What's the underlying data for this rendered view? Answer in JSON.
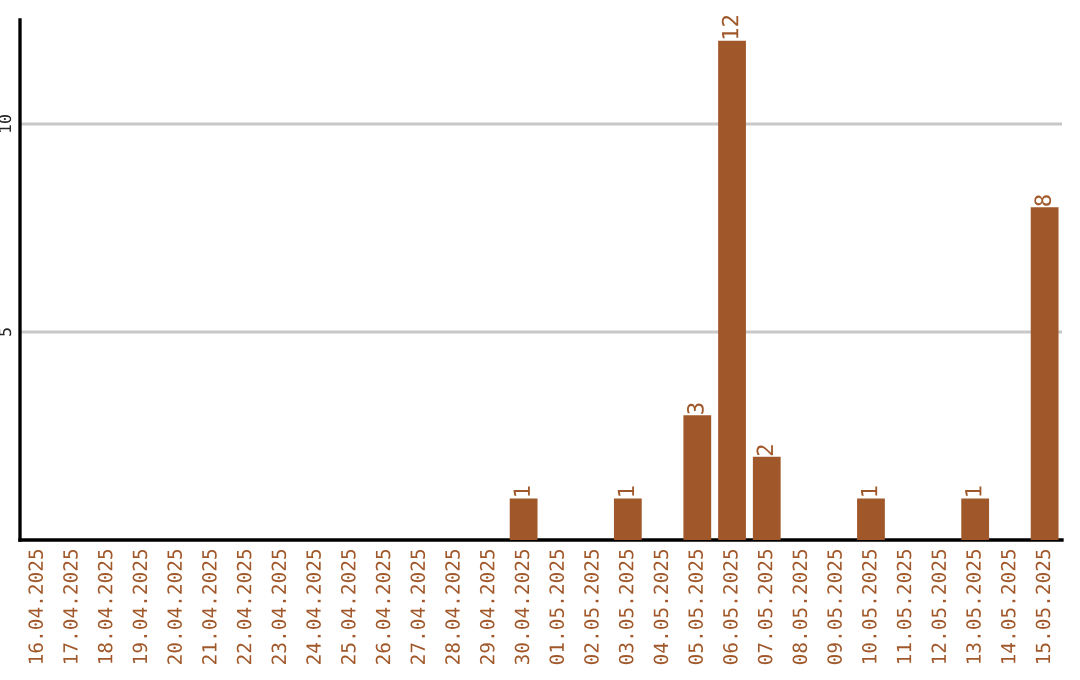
{
  "chart_data": {
    "type": "bar",
    "categories": [
      "16.04.2025",
      "17.04.2025",
      "18.04.2025",
      "19.04.2025",
      "20.04.2025",
      "21.04.2025",
      "22.04.2025",
      "23.04.2025",
      "24.04.2025",
      "25.04.2025",
      "26.04.2025",
      "27.04.2025",
      "28.04.2025",
      "29.04.2025",
      "30.04.2025",
      "01.05.2025",
      "02.05.2025",
      "03.05.2025",
      "04.05.2025",
      "05.05.2025",
      "06.05.2025",
      "07.05.2025",
      "08.05.2025",
      "09.05.2025",
      "10.05.2025",
      "11.05.2025",
      "12.05.2025",
      "13.05.2025",
      "14.05.2025",
      "15.05.2025"
    ],
    "values": [
      0,
      0,
      0,
      0,
      0,
      0,
      0,
      0,
      0,
      0,
      0,
      0,
      0,
      0,
      1,
      0,
      0,
      1,
      0,
      3,
      12,
      2,
      0,
      0,
      1,
      0,
      0,
      1,
      0,
      8
    ],
    "value_labels": [
      null,
      null,
      null,
      null,
      null,
      null,
      null,
      null,
      null,
      null,
      null,
      null,
      null,
      null,
      "1",
      null,
      null,
      "1",
      null,
      "3",
      "12",
      "2",
      null,
      null,
      "1",
      null,
      null,
      "1",
      null,
      "8"
    ],
    "color": "#a0582a",
    "ylim": [
      0,
      12.5
    ],
    "yticks": [
      5,
      10
    ],
    "grid": "y",
    "legend": false
  }
}
